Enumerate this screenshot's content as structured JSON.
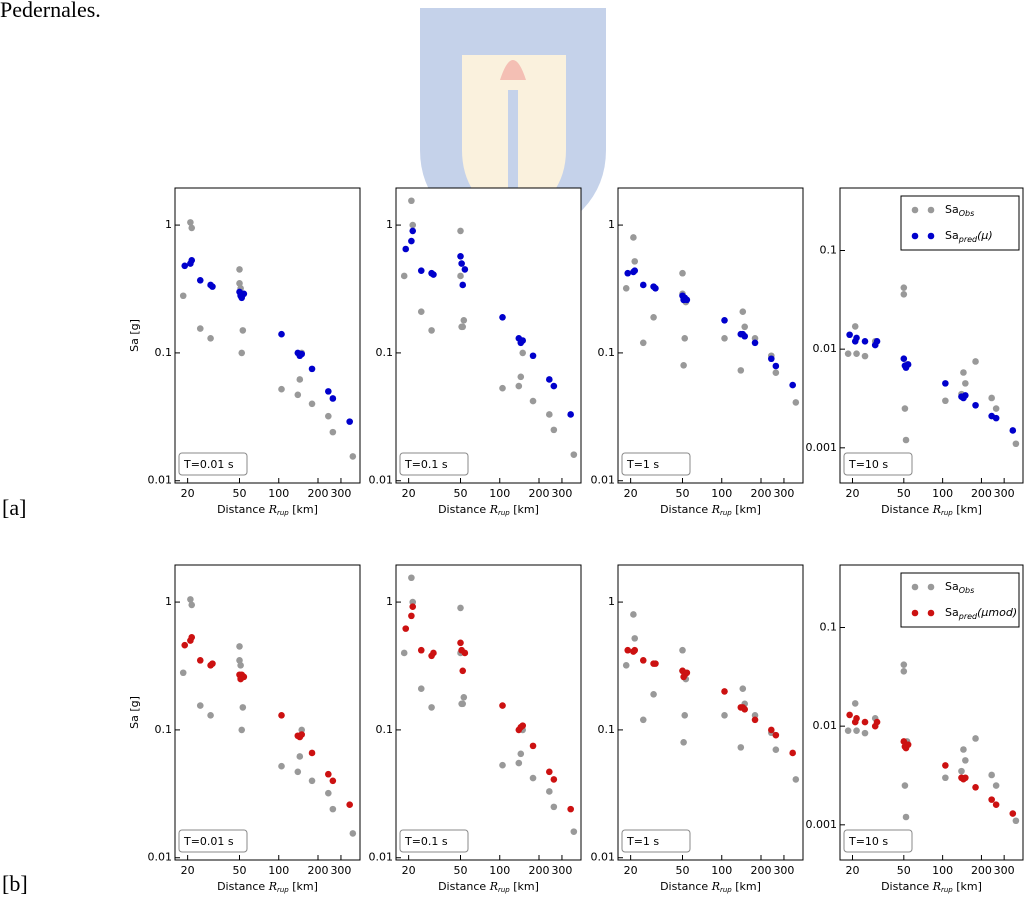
{
  "page": {
    "caption_fragment": "Pedernales.",
    "row_labels": [
      "[a]",
      "[b]"
    ]
  },
  "chart_data": [
    {
      "type": "scatter",
      "annotation": "T=0.01 s",
      "ylabel": "Sa [g]",
      "xlabel": {
        "text": "Distance",
        "var": "R",
        "sub": "rup",
        "unit": "[km]"
      },
      "log_x": true,
      "log_y": true,
      "xlim": [
        16,
        420
      ],
      "ylim": [
        0.0096,
        1.95
      ],
      "xticks": [
        20,
        50,
        100,
        200,
        300
      ],
      "yticks": [
        0.01,
        0.1,
        1
      ],
      "series": [
        {
          "name": "Sa",
          "subscript": "Obs",
          "color": "#999999",
          "x": [
            18.5,
            21,
            21.5,
            25,
            30,
            50,
            50,
            51,
            52,
            53,
            105,
            140,
            145,
            150,
            180,
            240,
            260,
            370
          ],
          "values": [
            0.28,
            1.05,
            0.95,
            0.155,
            0.13,
            0.45,
            0.35,
            0.32,
            0.1,
            0.15,
            0.052,
            0.047,
            0.062,
            0.1,
            0.04,
            0.032,
            0.024,
            0.0155
          ]
        },
        {
          "name": "Sa",
          "subscript": "pred",
          "suffix": "(μ)",
          "color": "#0000cc",
          "x": [
            19,
            21,
            21.5,
            25,
            30,
            31,
            50,
            51,
            52,
            54,
            105,
            140,
            145,
            150,
            180,
            240,
            260,
            350
          ],
          "values": [
            0.48,
            0.5,
            0.53,
            0.37,
            0.34,
            0.33,
            0.3,
            0.28,
            0.27,
            0.29,
            0.14,
            0.1,
            0.095,
            0.098,
            0.075,
            0.05,
            0.044,
            0.029
          ]
        }
      ]
    },
    {
      "type": "scatter",
      "annotation": "T=0.1 s",
      "xlabel": {
        "text": "Distance",
        "var": "R",
        "sub": "rup",
        "unit": "[km]"
      },
      "log_x": true,
      "log_y": true,
      "xlim": [
        16,
        420
      ],
      "ylim": [
        0.0096,
        1.95
      ],
      "xticks": [
        20,
        50,
        100,
        200,
        300
      ],
      "yticks": [
        0.01,
        0.1,
        1
      ],
      "series": [
        {
          "name": "Sa",
          "subscript": "Obs",
          "color": "#999999",
          "x": [
            18.5,
            21,
            21.5,
            25,
            30,
            50,
            50,
            51,
            52,
            53,
            105,
            140,
            145,
            150,
            180,
            240,
            260,
            370
          ],
          "values": [
            0.4,
            1.55,
            1.0,
            0.21,
            0.15,
            0.9,
            0.4,
            0.16,
            0.16,
            0.18,
            0.053,
            0.055,
            0.065,
            0.1,
            0.042,
            0.033,
            0.025,
            0.016
          ]
        },
        {
          "name": "Sa",
          "subscript": "pred",
          "suffix": "(μ)",
          "color": "#0000cc",
          "x": [
            19,
            21,
            21.5,
            25,
            30,
            31,
            50,
            51,
            52,
            54,
            105,
            140,
            145,
            150,
            180,
            240,
            260,
            350
          ],
          "values": [
            0.65,
            0.75,
            0.9,
            0.44,
            0.42,
            0.41,
            0.57,
            0.5,
            0.34,
            0.45,
            0.19,
            0.13,
            0.12,
            0.125,
            0.095,
            0.062,
            0.055,
            0.033
          ]
        }
      ]
    },
    {
      "type": "scatter",
      "annotation": "T=1 s",
      "xlabel": {
        "text": "Distance",
        "var": "R",
        "sub": "rup",
        "unit": "[km]"
      },
      "log_x": true,
      "log_y": true,
      "xlim": [
        16,
        420
      ],
      "ylim": [
        0.0096,
        1.95
      ],
      "xticks": [
        20,
        50,
        100,
        200,
        300
      ],
      "yticks": [
        0.01,
        0.1,
        1
      ],
      "series": [
        {
          "name": "Sa",
          "subscript": "Obs",
          "color": "#999999",
          "x": [
            18.5,
            21,
            21.5,
            25,
            30,
            50,
            50,
            51,
            52,
            53,
            105,
            140,
            145,
            150,
            180,
            240,
            260,
            370
          ],
          "values": [
            0.32,
            0.8,
            0.52,
            0.12,
            0.19,
            0.42,
            0.29,
            0.08,
            0.13,
            0.25,
            0.13,
            0.073,
            0.21,
            0.16,
            0.13,
            0.095,
            0.07,
            0.041
          ]
        },
        {
          "name": "Sa",
          "subscript": "pred",
          "suffix": "(μ)",
          "color": "#0000cc",
          "x": [
            19,
            21,
            21.5,
            25,
            30,
            31,
            50,
            51,
            52,
            54,
            105,
            140,
            145,
            150,
            180,
            240,
            260,
            350
          ],
          "values": [
            0.42,
            0.43,
            0.44,
            0.34,
            0.33,
            0.32,
            0.28,
            0.26,
            0.27,
            0.26,
            0.18,
            0.14,
            0.14,
            0.135,
            0.12,
            0.09,
            0.079,
            0.056
          ]
        }
      ]
    },
    {
      "type": "scatter",
      "annotation": "T=10 s",
      "legend": "upper right",
      "xlabel": {
        "text": "Distance",
        "var": "R",
        "sub": "rup",
        "unit": "[km]"
      },
      "log_x": true,
      "log_y": true,
      "xlim": [
        16,
        420
      ],
      "ylim": [
        0.00044,
        0.43
      ],
      "xticks": [
        20,
        50,
        100,
        200,
        300
      ],
      "yticks": [
        0.001,
        0.01,
        0.1
      ],
      "series": [
        {
          "name": "Sa",
          "subscript": "Obs",
          "color": "#999999",
          "x": [
            18.5,
            21,
            21.5,
            25,
            30,
            50,
            50,
            51,
            52,
            53,
            105,
            140,
            145,
            150,
            180,
            240,
            260,
            370
          ],
          "values": [
            0.009,
            0.017,
            0.009,
            0.0085,
            0.012,
            0.036,
            0.042,
            0.0025,
            0.0012,
            0.007,
            0.003,
            0.0035,
            0.0058,
            0.0045,
            0.0075,
            0.0032,
            0.0025,
            0.0011
          ]
        },
        {
          "name": "Sa",
          "subscript": "pred",
          "suffix": "(μ)",
          "color": "#0000cc",
          "x": [
            19,
            21,
            21.5,
            25,
            30,
            31,
            50,
            51,
            52,
            54,
            105,
            140,
            145,
            150,
            180,
            240,
            260,
            350
          ],
          "values": [
            0.014,
            0.012,
            0.013,
            0.012,
            0.011,
            0.012,
            0.008,
            0.0068,
            0.0065,
            0.007,
            0.0045,
            0.0033,
            0.0032,
            0.0034,
            0.0027,
            0.0021,
            0.002,
            0.0015
          ]
        }
      ]
    },
    {
      "type": "scatter",
      "annotation": "T=0.01 s",
      "ylabel": "Sa [g]",
      "xlabel": {
        "text": "Distance",
        "var": "R",
        "sub": "rup",
        "unit": "[km]"
      },
      "log_x": true,
      "log_y": true,
      "xlim": [
        16,
        420
      ],
      "ylim": [
        0.0096,
        1.95
      ],
      "xticks": [
        20,
        50,
        100,
        200,
        300
      ],
      "yticks": [
        0.01,
        0.1,
        1
      ],
      "series": [
        {
          "name": "Sa",
          "subscript": "Obs",
          "color": "#999999",
          "x": [
            18.5,
            21,
            21.5,
            25,
            30,
            50,
            50,
            51,
            52,
            53,
            105,
            140,
            145,
            150,
            180,
            240,
            260,
            370
          ],
          "values": [
            0.28,
            1.05,
            0.95,
            0.155,
            0.13,
            0.45,
            0.35,
            0.32,
            0.1,
            0.15,
            0.052,
            0.047,
            0.062,
            0.1,
            0.04,
            0.032,
            0.024,
            0.0155
          ]
        },
        {
          "name": "Sa",
          "subscript": "pred",
          "suffix": "(μmod)",
          "color": "#cc1111",
          "x": [
            19,
            21,
            21.5,
            25,
            30,
            31,
            50,
            51,
            52,
            54,
            105,
            140,
            145,
            150,
            180,
            240,
            260,
            350
          ],
          "values": [
            0.46,
            0.5,
            0.53,
            0.35,
            0.32,
            0.33,
            0.27,
            0.25,
            0.27,
            0.26,
            0.13,
            0.09,
            0.088,
            0.092,
            0.066,
            0.045,
            0.04,
            0.026
          ]
        }
      ]
    },
    {
      "type": "scatter",
      "annotation": "T=0.1 s",
      "xlabel": {
        "text": "Distance",
        "var": "R",
        "sub": "rup",
        "unit": "[km]"
      },
      "log_x": true,
      "log_y": true,
      "xlim": [
        16,
        420
      ],
      "ylim": [
        0.0096,
        1.95
      ],
      "xticks": [
        20,
        50,
        100,
        200,
        300
      ],
      "yticks": [
        0.01,
        0.1,
        1
      ],
      "series": [
        {
          "name": "Sa",
          "subscript": "Obs",
          "color": "#999999",
          "x": [
            18.5,
            21,
            21.5,
            25,
            30,
            50,
            50,
            51,
            52,
            53,
            105,
            140,
            145,
            150,
            180,
            240,
            260,
            370
          ],
          "values": [
            0.4,
            1.55,
            1.0,
            0.21,
            0.15,
            0.9,
            0.4,
            0.16,
            0.16,
            0.18,
            0.053,
            0.055,
            0.065,
            0.1,
            0.042,
            0.033,
            0.025,
            0.016
          ]
        },
        {
          "name": "Sa",
          "subscript": "pred",
          "suffix": "(μmod)",
          "color": "#cc1111",
          "x": [
            19,
            21,
            21.5,
            25,
            30,
            31,
            50,
            51,
            52,
            54,
            105,
            140,
            145,
            150,
            180,
            240,
            260,
            350
          ],
          "values": [
            0.62,
            0.78,
            0.92,
            0.42,
            0.38,
            0.4,
            0.48,
            0.42,
            0.29,
            0.4,
            0.155,
            0.1,
            0.105,
            0.108,
            0.075,
            0.047,
            0.041,
            0.024
          ]
        }
      ]
    },
    {
      "type": "scatter",
      "annotation": "T=1 s",
      "xlabel": {
        "text": "Distance",
        "var": "R",
        "sub": "rup",
        "unit": "[km]"
      },
      "log_x": true,
      "log_y": true,
      "xlim": [
        16,
        420
      ],
      "ylim": [
        0.0096,
        1.95
      ],
      "xticks": [
        20,
        50,
        100,
        200,
        300
      ],
      "yticks": [
        0.01,
        0.1,
        1
      ],
      "series": [
        {
          "name": "Sa",
          "subscript": "Obs",
          "color": "#999999",
          "x": [
            18.5,
            21,
            21.5,
            25,
            30,
            50,
            50,
            51,
            52,
            53,
            105,
            140,
            145,
            150,
            180,
            240,
            260,
            370
          ],
          "values": [
            0.32,
            0.8,
            0.52,
            0.12,
            0.19,
            0.42,
            0.29,
            0.08,
            0.13,
            0.25,
            0.13,
            0.073,
            0.21,
            0.16,
            0.13,
            0.095,
            0.07,
            0.041
          ]
        },
        {
          "name": "Sa",
          "subscript": "pred",
          "suffix": "(μmod)",
          "color": "#cc1111",
          "x": [
            19,
            21,
            21.5,
            25,
            30,
            31,
            50,
            51,
            52,
            54,
            105,
            140,
            145,
            150,
            180,
            240,
            260,
            350
          ],
          "values": [
            0.42,
            0.41,
            0.42,
            0.35,
            0.33,
            0.33,
            0.29,
            0.26,
            0.27,
            0.28,
            0.2,
            0.15,
            0.15,
            0.145,
            0.12,
            0.1,
            0.091,
            0.066
          ]
        }
      ]
    },
    {
      "type": "scatter",
      "annotation": "T=10 s",
      "legend": "upper right",
      "xlabel": {
        "text": "Distance",
        "var": "R",
        "sub": "rup",
        "unit": "[km]"
      },
      "log_x": true,
      "log_y": true,
      "xlim": [
        16,
        420
      ],
      "ylim": [
        0.00044,
        0.43
      ],
      "xticks": [
        20,
        50,
        100,
        200,
        300
      ],
      "yticks": [
        0.001,
        0.01,
        0.1
      ],
      "series": [
        {
          "name": "Sa",
          "subscript": "Obs",
          "color": "#999999",
          "x": [
            18.5,
            21,
            21.5,
            25,
            30,
            50,
            50,
            51,
            52,
            53,
            105,
            140,
            145,
            150,
            180,
            240,
            260,
            370
          ],
          "values": [
            0.009,
            0.017,
            0.009,
            0.0085,
            0.012,
            0.036,
            0.042,
            0.0025,
            0.0012,
            0.007,
            0.003,
            0.0035,
            0.0058,
            0.0045,
            0.0075,
            0.0032,
            0.0025,
            0.0011
          ]
        },
        {
          "name": "Sa",
          "subscript": "pred",
          "suffix": "(μmod)",
          "color": "#cc1111",
          "x": [
            19,
            21,
            21.5,
            25,
            30,
            31,
            50,
            51,
            52,
            54,
            105,
            140,
            145,
            150,
            180,
            240,
            260,
            350
          ],
          "values": [
            0.013,
            0.011,
            0.012,
            0.011,
            0.01,
            0.011,
            0.007,
            0.0062,
            0.006,
            0.0065,
            0.004,
            0.003,
            0.0029,
            0.003,
            0.0024,
            0.0018,
            0.0016,
            0.0013
          ]
        }
      ]
    }
  ]
}
